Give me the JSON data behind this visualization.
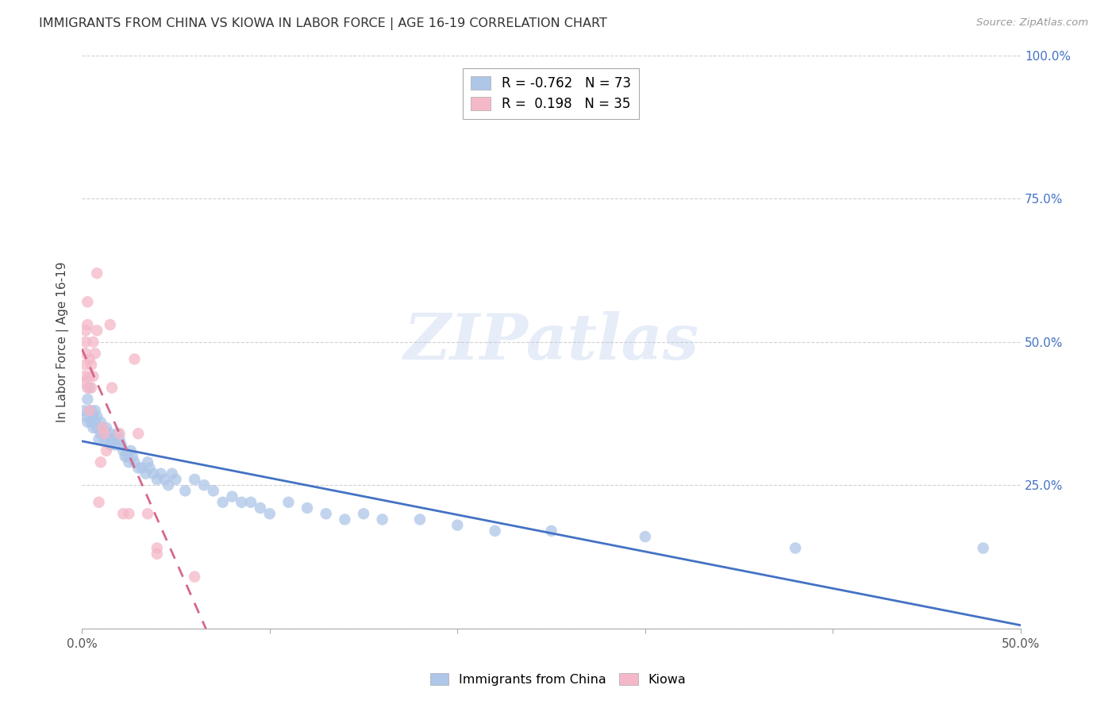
{
  "title": "IMMIGRANTS FROM CHINA VS KIOWA IN LABOR FORCE | AGE 16-19 CORRELATION CHART",
  "source": "Source: ZipAtlas.com",
  "ylabel": "In Labor Force | Age 16-19",
  "xlim": [
    0.0,
    0.5
  ],
  "ylim": [
    0.0,
    1.0
  ],
  "xticks": [
    0.0,
    0.1,
    0.2,
    0.3,
    0.4,
    0.5
  ],
  "yticks": [
    0.0,
    0.25,
    0.5,
    0.75,
    1.0
  ],
  "xticklabels": [
    "0.0%",
    "",
    "",
    "",
    "",
    "50.0%"
  ],
  "yticklabels_right": [
    "",
    "25.0%",
    "50.0%",
    "75.0%",
    "100.0%"
  ],
  "legend_china_R": "-0.762",
  "legend_china_N": "73",
  "legend_kiowa_R": "0.198",
  "legend_kiowa_N": "35",
  "china_color": "#aec6e8",
  "kiowa_color": "#f4b8c8",
  "china_line_color": "#4472c4",
  "kiowa_line_color": "#d4688a",
  "watermark": "ZIPatlas",
  "china_scatter": [
    [
      0.001,
      0.38
    ],
    [
      0.002,
      0.37
    ],
    [
      0.003,
      0.4
    ],
    [
      0.003,
      0.36
    ],
    [
      0.004,
      0.42
    ],
    [
      0.004,
      0.38
    ],
    [
      0.005,
      0.38
    ],
    [
      0.005,
      0.36
    ],
    [
      0.006,
      0.35
    ],
    [
      0.006,
      0.37
    ],
    [
      0.007,
      0.38
    ],
    [
      0.007,
      0.36
    ],
    [
      0.008,
      0.35
    ],
    [
      0.008,
      0.37
    ],
    [
      0.009,
      0.33
    ],
    [
      0.01,
      0.36
    ],
    [
      0.01,
      0.34
    ],
    [
      0.011,
      0.35
    ],
    [
      0.012,
      0.34
    ],
    [
      0.012,
      0.33
    ],
    [
      0.013,
      0.35
    ],
    [
      0.013,
      0.34
    ],
    [
      0.014,
      0.33
    ],
    [
      0.015,
      0.34
    ],
    [
      0.015,
      0.32
    ],
    [
      0.016,
      0.33
    ],
    [
      0.017,
      0.33
    ],
    [
      0.018,
      0.32
    ],
    [
      0.019,
      0.34
    ],
    [
      0.02,
      0.33
    ],
    [
      0.021,
      0.32
    ],
    [
      0.022,
      0.31
    ],
    [
      0.023,
      0.3
    ],
    [
      0.024,
      0.3
    ],
    [
      0.025,
      0.29
    ],
    [
      0.026,
      0.31
    ],
    [
      0.027,
      0.3
    ],
    [
      0.028,
      0.29
    ],
    [
      0.03,
      0.28
    ],
    [
      0.032,
      0.28
    ],
    [
      0.034,
      0.27
    ],
    [
      0.035,
      0.29
    ],
    [
      0.036,
      0.28
    ],
    [
      0.038,
      0.27
    ],
    [
      0.04,
      0.26
    ],
    [
      0.042,
      0.27
    ],
    [
      0.044,
      0.26
    ],
    [
      0.046,
      0.25
    ],
    [
      0.048,
      0.27
    ],
    [
      0.05,
      0.26
    ],
    [
      0.055,
      0.24
    ],
    [
      0.06,
      0.26
    ],
    [
      0.065,
      0.25
    ],
    [
      0.07,
      0.24
    ],
    [
      0.075,
      0.22
    ],
    [
      0.08,
      0.23
    ],
    [
      0.085,
      0.22
    ],
    [
      0.09,
      0.22
    ],
    [
      0.095,
      0.21
    ],
    [
      0.1,
      0.2
    ],
    [
      0.11,
      0.22
    ],
    [
      0.12,
      0.21
    ],
    [
      0.13,
      0.2
    ],
    [
      0.14,
      0.19
    ],
    [
      0.15,
      0.2
    ],
    [
      0.16,
      0.19
    ],
    [
      0.18,
      0.19
    ],
    [
      0.2,
      0.18
    ],
    [
      0.22,
      0.17
    ],
    [
      0.25,
      0.17
    ],
    [
      0.3,
      0.16
    ],
    [
      0.38,
      0.14
    ],
    [
      0.48,
      0.14
    ]
  ],
  "kiowa_scatter": [
    [
      0.001,
      0.43
    ],
    [
      0.001,
      0.44
    ],
    [
      0.002,
      0.46
    ],
    [
      0.002,
      0.48
    ],
    [
      0.002,
      0.5
    ],
    [
      0.002,
      0.52
    ],
    [
      0.003,
      0.53
    ],
    [
      0.003,
      0.57
    ],
    [
      0.003,
      0.42
    ],
    [
      0.004,
      0.47
    ],
    [
      0.004,
      0.38
    ],
    [
      0.004,
      0.44
    ],
    [
      0.005,
      0.42
    ],
    [
      0.005,
      0.46
    ],
    [
      0.006,
      0.44
    ],
    [
      0.006,
      0.5
    ],
    [
      0.007,
      0.48
    ],
    [
      0.008,
      0.52
    ],
    [
      0.008,
      0.62
    ],
    [
      0.009,
      0.22
    ],
    [
      0.01,
      0.29
    ],
    [
      0.011,
      0.35
    ],
    [
      0.012,
      0.34
    ],
    [
      0.013,
      0.31
    ],
    [
      0.015,
      0.53
    ],
    [
      0.016,
      0.42
    ],
    [
      0.02,
      0.34
    ],
    [
      0.022,
      0.2
    ],
    [
      0.025,
      0.2
    ],
    [
      0.028,
      0.47
    ],
    [
      0.03,
      0.34
    ],
    [
      0.035,
      0.2
    ],
    [
      0.04,
      0.14
    ],
    [
      0.04,
      0.13
    ],
    [
      0.06,
      0.09
    ]
  ]
}
